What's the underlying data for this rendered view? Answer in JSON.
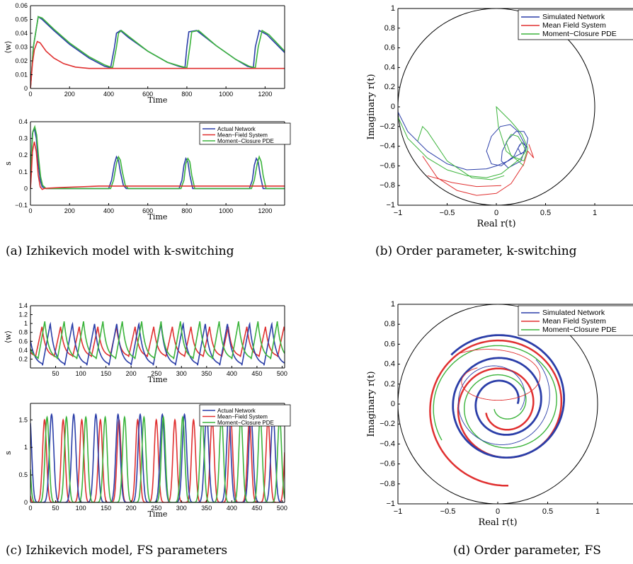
{
  "colors": {
    "network": "#2b3ea8",
    "meanfield": "#e03030",
    "closure": "#3cb43c"
  },
  "captions": [
    "(a) Izhikevich model with k-switching",
    "(b) Order parameter, k-switching",
    "(c) Izhikevich model, FS parameters",
    "(d) Order parameter, FS"
  ],
  "chart_data": [
    {
      "id": "a-top",
      "type": "line",
      "xlabel": "Time",
      "ylabel": "⟨w⟩",
      "xlim": [
        0,
        1300
      ],
      "ylim": [
        0,
        0.06
      ],
      "xticks": [
        0,
        200,
        400,
        600,
        800,
        1000,
        1200
      ],
      "yticks": [
        0,
        0.01,
        0.02,
        0.03,
        0.04,
        0.05,
        0.06
      ],
      "ytick_labels": [
        "0",
        "0.01",
        "0.02",
        "0.03",
        "0.04",
        "0.05",
        "0.06"
      ],
      "legend": null,
      "series": [
        {
          "key": "network",
          "x": [
            0,
            15,
            40,
            60,
            120,
            200,
            300,
            380,
            410,
            430,
            440,
            460,
            500,
            600,
            700,
            760,
            790,
            800,
            810,
            850,
            950,
            1050,
            1110,
            1140,
            1150,
            1170,
            1210,
            1300
          ],
          "y": [
            0,
            0.03,
            0.052,
            0.05,
            0.042,
            0.032,
            0.022,
            0.016,
            0.015,
            0.03,
            0.04,
            0.042,
            0.037,
            0.027,
            0.019,
            0.016,
            0.015,
            0.03,
            0.041,
            0.042,
            0.031,
            0.021,
            0.016,
            0.015,
            0.03,
            0.042,
            0.039,
            0.026
          ]
        },
        {
          "key": "closure",
          "x": [
            0,
            15,
            40,
            60,
            120,
            200,
            300,
            380,
            420,
            440,
            450,
            465,
            500,
            600,
            700,
            770,
            800,
            815,
            825,
            860,
            950,
            1050,
            1120,
            1150,
            1165,
            1185,
            1220,
            1300
          ],
          "y": [
            0,
            0.03,
            0.052,
            0.051,
            0.043,
            0.033,
            0.023,
            0.017,
            0.015,
            0.03,
            0.04,
            0.042,
            0.038,
            0.027,
            0.019,
            0.016,
            0.015,
            0.03,
            0.041,
            0.042,
            0.031,
            0.021,
            0.016,
            0.015,
            0.03,
            0.042,
            0.039,
            0.027
          ]
        },
        {
          "key": "meanfield",
          "x": [
            0,
            10,
            20,
            35,
            50,
            80,
            120,
            170,
            230,
            300,
            400,
            600,
            800,
            1000,
            1300
          ],
          "y": [
            0,
            0.018,
            0.028,
            0.034,
            0.033,
            0.027,
            0.022,
            0.018,
            0.0155,
            0.0145,
            0.0145,
            0.0145,
            0.0145,
            0.0145,
            0.0145
          ]
        }
      ]
    },
    {
      "id": "a-bottom",
      "type": "line",
      "xlabel": "Time",
      "ylabel": "s",
      "xlim": [
        0,
        1300
      ],
      "ylim": [
        -0.1,
        0.4
      ],
      "xticks": [
        0,
        200,
        400,
        600,
        800,
        1000,
        1200
      ],
      "yticks": [
        -0.1,
        0,
        0.1,
        0.2,
        0.3,
        0.4
      ],
      "ytick_labels": [
        "−0.1",
        "0",
        "0.1",
        "0.2",
        "0.3",
        "0.4"
      ],
      "legend": [
        "Actual Network",
        "Mean−Field System",
        "Moment−Closure PDE"
      ],
      "series": [
        {
          "key": "network",
          "x": [
            0,
            5,
            10,
            20,
            30,
            40,
            50,
            60,
            80,
            100,
            400,
            415,
            430,
            440,
            450,
            460,
            475,
            490,
            760,
            775,
            785,
            795,
            805,
            815,
            830,
            1120,
            1135,
            1145,
            1155,
            1165,
            1175,
            1190,
            1300
          ],
          "y": [
            0,
            0.2,
            0.33,
            0.36,
            0.3,
            0.15,
            0.05,
            0.01,
            0,
            0,
            0,
            0.05,
            0.15,
            0.19,
            0.17,
            0.1,
            0.02,
            0,
            0,
            0.05,
            0.14,
            0.18,
            0.16,
            0.08,
            0,
            0,
            0.05,
            0.14,
            0.18,
            0.16,
            0.08,
            0,
            0
          ]
        },
        {
          "key": "closure",
          "x": [
            0,
            5,
            12,
            22,
            32,
            42,
            52,
            62,
            80,
            100,
            410,
            425,
            440,
            450,
            460,
            470,
            485,
            500,
            770,
            785,
            795,
            805,
            815,
            825,
            840,
            1130,
            1145,
            1160,
            1170,
            1180,
            1190,
            1205,
            1300
          ],
          "y": [
            0,
            0.2,
            0.34,
            0.37,
            0.32,
            0.18,
            0.07,
            0.02,
            0,
            0,
            0,
            0.05,
            0.15,
            0.19,
            0.17,
            0.1,
            0.02,
            0,
            0,
            0.05,
            0.15,
            0.18,
            0.16,
            0.08,
            0,
            0,
            0.05,
            0.15,
            0.19,
            0.16,
            0.08,
            0,
            0
          ]
        },
        {
          "key": "meanfield",
          "x": [
            0,
            5,
            10,
            20,
            30,
            40,
            50,
            60,
            70,
            90,
            150,
            250,
            350,
            500,
            800,
            1300
          ],
          "y": [
            0,
            0.1,
            0.22,
            0.28,
            0.22,
            0.08,
            0.01,
            -0.005,
            0,
            0.002,
            0.006,
            0.01,
            0.015,
            0.015,
            0.015,
            0.015
          ]
        }
      ]
    },
    {
      "id": "c-top",
      "type": "line",
      "xlabel": "Time",
      "ylabel": "⟨w⟩",
      "xlim": [
        0,
        505
      ],
      "ylim": [
        0,
        1.4
      ],
      "xticks": [
        50,
        100,
        150,
        200,
        250,
        300,
        350,
        400,
        450,
        500
      ],
      "yticks": [
        0.2,
        0.4,
        0.6,
        0.8,
        1,
        1.2,
        1.4
      ],
      "ytick_labels": [
        "0.2",
        "0.4",
        "0.6",
        "0.8",
        "1",
        "1.2",
        "1.4"
      ],
      "legend": null,
      "osc": [
        {
          "key": "meanfield",
          "period": 37.0,
          "phase": 10,
          "min": 0.25,
          "max": 0.93
        },
        {
          "key": "network",
          "period": 44.0,
          "phase": 24,
          "min": 0.06,
          "max": 1.0
        },
        {
          "key": "closure",
          "period": 38.5,
          "phase": 15,
          "min": 0.2,
          "max": 1.05
        }
      ]
    },
    {
      "id": "c-bottom",
      "type": "line",
      "xlabel": "Time",
      "ylabel": "s",
      "xlim": [
        0,
        505
      ],
      "ylim": [
        0,
        1.8
      ],
      "xticks": [
        0,
        50,
        100,
        150,
        200,
        250,
        300,
        350,
        400,
        450,
        500
      ],
      "yticks": [
        0,
        0.5,
        1,
        1.5
      ],
      "ytick_labels": [
        "0",
        "0.5",
        "1",
        "1.5"
      ],
      "legend": [
        "Actual Network",
        "Mean−Field System",
        "Moment−Closure PDE"
      ],
      "pulses": [
        {
          "key": "meanfield",
          "period": 37.0,
          "phase": 28,
          "height": 1.5,
          "width": 12
        },
        {
          "key": "network",
          "period": 44.0,
          "phase": 42,
          "height": 1.6,
          "width": 13
        },
        {
          "key": "closure",
          "period": 38.5,
          "phase": 33,
          "height": 1.55,
          "width": 12
        }
      ]
    },
    {
      "id": "b",
      "type": "line",
      "xlabel": "Real r(t)",
      "ylabel": "Imaginary r(t)",
      "xlim": [
        -1,
        1
      ],
      "ylim": [
        -1,
        1
      ],
      "xticks": [
        -1,
        -0.5,
        0,
        0.5,
        1
      ],
      "xtick_labels": [
        "−1",
        "−0.5",
        "0",
        "0.5",
        "1"
      ],
      "yticks": [
        -1,
        -0.8,
        -0.6,
        -0.4,
        -0.2,
        0,
        0.2,
        0.4,
        0.6,
        0.8,
        1
      ],
      "ytick_labels": [
        "−1",
        "−0.8",
        "−0.6",
        "−0.4",
        "−0.2",
        "0",
        "0.2",
        "0.4",
        "0.6",
        "0.8",
        "1"
      ],
      "legend": [
        "Simulated Network",
        "Mean Field System",
        "Moment−Closure PDE"
      ],
      "series": [
        {
          "key": "network",
          "x": [
            -1.0,
            -0.9,
            -0.7,
            -0.5,
            -0.3,
            -0.1,
            0.0,
            0.12,
            0.2,
            0.28,
            0.3,
            0.26,
            0.22,
            0.25,
            0.3,
            0.32,
            0.28,
            0.2,
            0.12,
            0.06,
            0.05,
            0.12,
            0.25,
            0.3,
            0.22,
            0.14,
            0.04,
            -0.05,
            -0.1,
            -0.05,
            0.05,
            0.18,
            0.24
          ],
          "y": [
            -0.05,
            -0.25,
            -0.45,
            -0.58,
            -0.64,
            -0.63,
            -0.6,
            -0.55,
            -0.5,
            -0.46,
            -0.4,
            -0.36,
            -0.42,
            -0.48,
            -0.44,
            -0.32,
            -0.25,
            -0.25,
            -0.33,
            -0.45,
            -0.55,
            -0.62,
            -0.55,
            -0.4,
            -0.25,
            -0.18,
            -0.2,
            -0.3,
            -0.45,
            -0.58,
            -0.6,
            -0.5,
            -0.38
          ]
        },
        {
          "key": "closure",
          "x": [
            -1.0,
            -0.9,
            -0.7,
            -0.5,
            -0.3,
            -0.1,
            0.05,
            0.15,
            0.25,
            0.3,
            0.27,
            0.22,
            0.15,
            0.1,
            0.15,
            0.28,
            0.32,
            0.26,
            0.15,
            0.05,
            0.0,
            0.02,
            0.1,
            0.28
          ],
          "y": [
            -0.1,
            -0.32,
            -0.52,
            -0.64,
            -0.7,
            -0.72,
            -0.68,
            -0.6,
            -0.52,
            -0.45,
            -0.38,
            -0.3,
            -0.28,
            -0.36,
            -0.5,
            -0.55,
            -0.42,
            -0.28,
            -0.15,
            -0.05,
            0.0,
            -0.2,
            -0.45,
            -0.6
          ]
        },
        {
          "key": "closure",
          "x": [
            -0.8,
            -0.75,
            -0.7,
            -0.5,
            -0.25,
            -0.05,
            0.08
          ],
          "y": [
            -0.35,
            -0.2,
            -0.25,
            -0.55,
            -0.72,
            -0.74,
            -0.7
          ]
        },
        {
          "key": "meanfield",
          "x": [
            -0.75,
            -0.6,
            -0.4,
            -0.2,
            0.0,
            0.15,
            0.28,
            0.32,
            0.38,
            0.33
          ],
          "y": [
            -0.5,
            -0.72,
            -0.85,
            -0.9,
            -0.88,
            -0.78,
            -0.58,
            -0.45,
            -0.52,
            -0.38
          ]
        },
        {
          "key": "meanfield",
          "x": [
            -0.7,
            -0.45,
            -0.2,
            0.05
          ],
          "y": [
            -0.7,
            -0.77,
            -0.81,
            -0.8
          ]
        }
      ]
    },
    {
      "id": "d",
      "type": "line",
      "xlabel": "Real r(t)",
      "ylabel": "Imaginary r(t)",
      "xlim": [
        -1,
        1
      ],
      "ylim": [
        -1,
        1
      ],
      "xticks": [
        -1,
        -0.5,
        0,
        0.5,
        1
      ],
      "xtick_labels": [
        "−1",
        "−0.5",
        "0",
        "0.5",
        "1"
      ],
      "yticks": [
        -1,
        -0.8,
        -0.6,
        -0.4,
        -0.2,
        0,
        0.2,
        0.4,
        0.6,
        0.8,
        1
      ],
      "ytick_labels": [
        "−1",
        "−0.8",
        "−0.6",
        "−0.4",
        "−0.2",
        "0",
        "0.2",
        "0.4",
        "0.6",
        "0.8",
        "1"
      ],
      "legend": [
        "Simulated Network",
        "Mean Field System",
        "Moment−Closure PDE"
      ],
      "spirals": [
        {
          "key": "meanfield",
          "r0": 0.8,
          "r1": 0.18,
          "turns": 2.2,
          "a0": -1.5,
          "cx": 0.05,
          "cy": -0.02,
          "w": 2.5,
          "sx": 1.0,
          "sy": 1.0
        },
        {
          "key": "network",
          "r0": 0.7,
          "r1": 0.15,
          "turns": 2.4,
          "a0": 2.4,
          "cx": 0.05,
          "cy": 0.02,
          "w": 2.8,
          "sx": 1.0,
          "sy": 1.0
        },
        {
          "key": "closure",
          "r0": 0.72,
          "r1": 0.1,
          "turns": 2.0,
          "a0": 3.7,
          "cx": 0.05,
          "cy": 0.0,
          "w": 1.4,
          "sx": 1.0,
          "sy": 0.95
        },
        {
          "key": "network",
          "r0": 0.55,
          "r1": 0.25,
          "turns": 1.2,
          "a0": 0.8,
          "cx": 0.0,
          "cy": 0.05,
          "w": 0.9,
          "sx": 1.0,
          "sy": 1.0
        },
        {
          "key": "meanfield",
          "r0": 0.45,
          "r1": 0.2,
          "turns": 1.0,
          "a0": 2.2,
          "cx": -0.05,
          "cy": 0.25,
          "w": 0.9,
          "sx": 1.3,
          "sy": 0.7
        }
      ]
    }
  ]
}
